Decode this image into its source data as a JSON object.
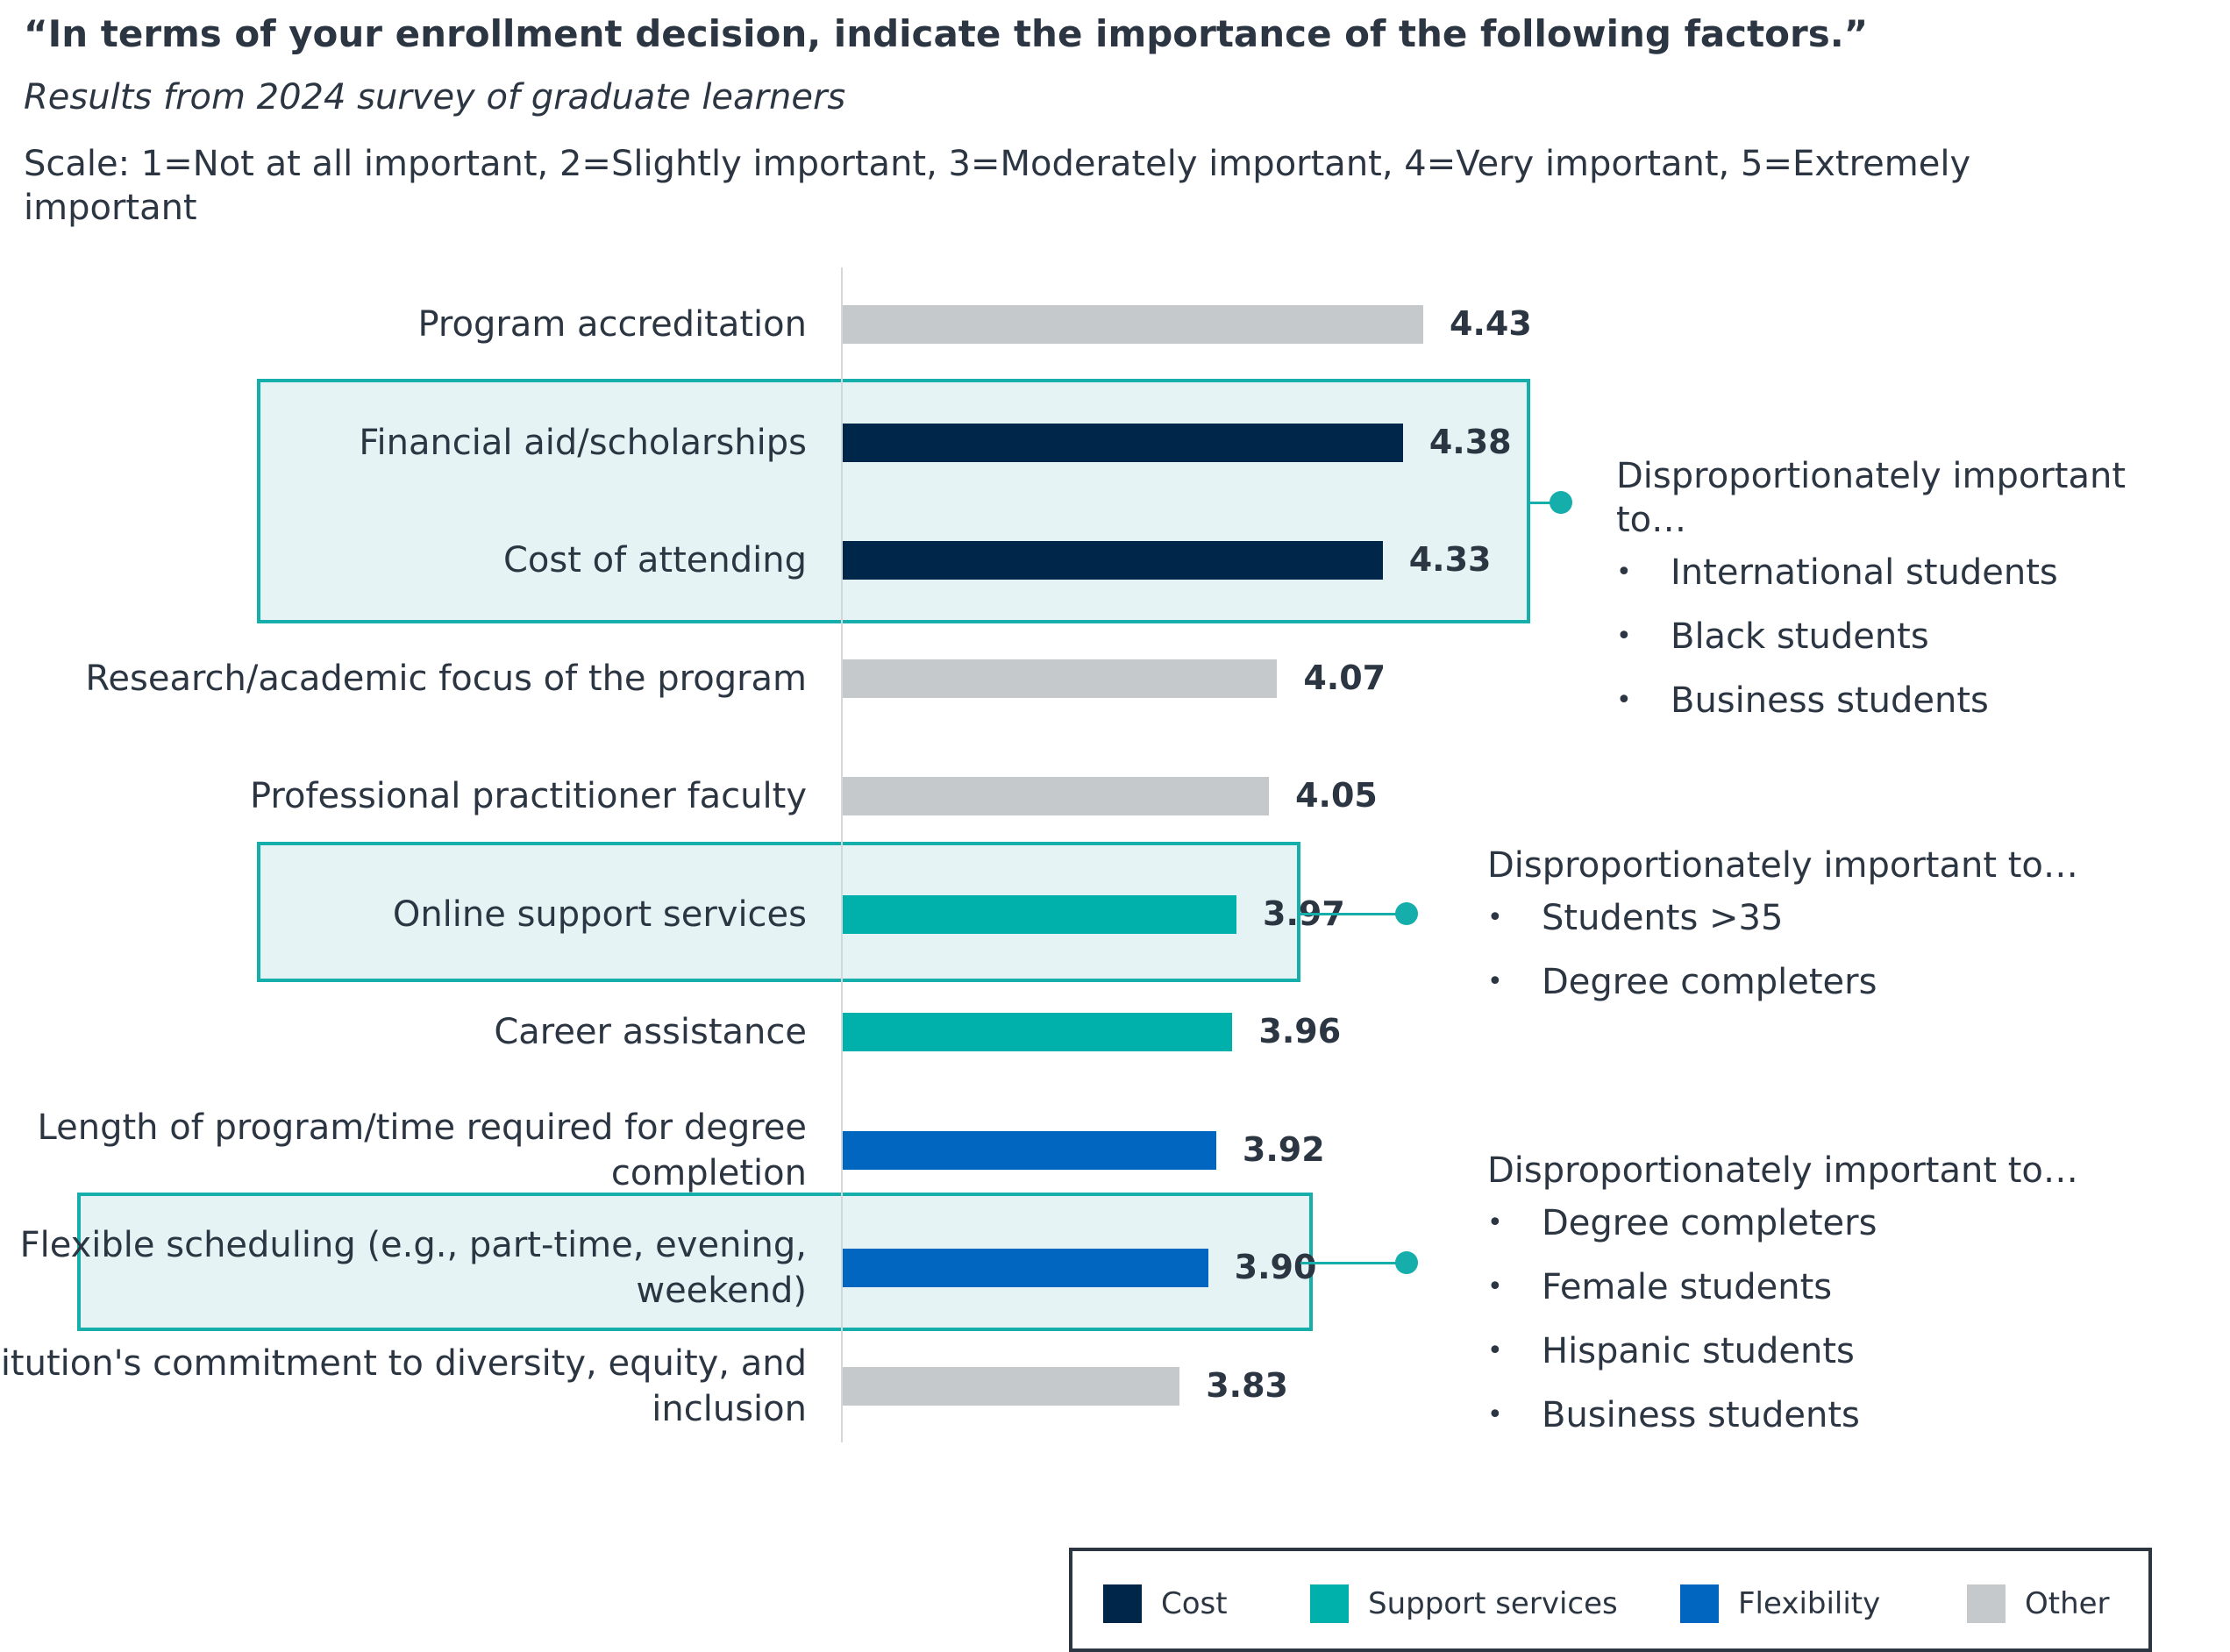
{
  "title": "“In terms of your enrollment decision, indicate the importance of the following factors.”",
  "subtitle": "Results from 2024 survey of graduate learners",
  "scale_note": "Scale: 1=Not at all important, 2=Slightly important, 3=Moderately important, 4=Very important, 5=Extremely important",
  "colors": {
    "Cost": "#00274a",
    "Support services": "#00b0ab",
    "Flexibility": "#0066c0",
    "Other": "#c6c9cc",
    "highlight_border": "#15aeaa",
    "highlight_fill": "#e5f3f4"
  },
  "chart_data": {
    "type": "bar",
    "orientation": "horizontal",
    "categories": [
      "Program accreditation",
      "Financial aid/scholarships",
      "Cost of attending",
      "Research/academic focus of the program",
      "Professional practitioner faculty",
      "Online support services",
      "Career assistance",
      "Length of program/time required for degree completion",
      "Flexible scheduling (e.g., part-time, evening, weekend)",
      "Institution's commitment to diversity, equity, and inclusion"
    ],
    "values": [
      4.43,
      4.38,
      4.33,
      4.07,
      4.05,
      3.97,
      3.96,
      3.92,
      3.9,
      3.83
    ],
    "value_labels": [
      "4.43",
      "4.38",
      "4.33",
      "4.07",
      "4.05",
      "3.97",
      "3.96",
      "3.92",
      "3.90",
      "3.83"
    ],
    "groups": [
      "Other",
      "Cost",
      "Cost",
      "Other",
      "Other",
      "Support services",
      "Support services",
      "Flexibility",
      "Flexibility",
      "Other"
    ],
    "legend": [
      "Cost",
      "Support services",
      "Flexibility",
      "Other"
    ],
    "legend_position": "bottom-right",
    "grid": false,
    "annotations": [
      {
        "header": "Disproportionately important to…",
        "items": [
          "International students",
          "Black students",
          "Business students"
        ]
      },
      {
        "header": "Disproportionately important to…",
        "items": [
          "Students >35",
          "Degree completers"
        ]
      },
      {
        "header": "Disproportionately important to…",
        "items": [
          "Degree completers",
          "Female students",
          "Hispanic students",
          "Business students"
        ]
      }
    ]
  }
}
